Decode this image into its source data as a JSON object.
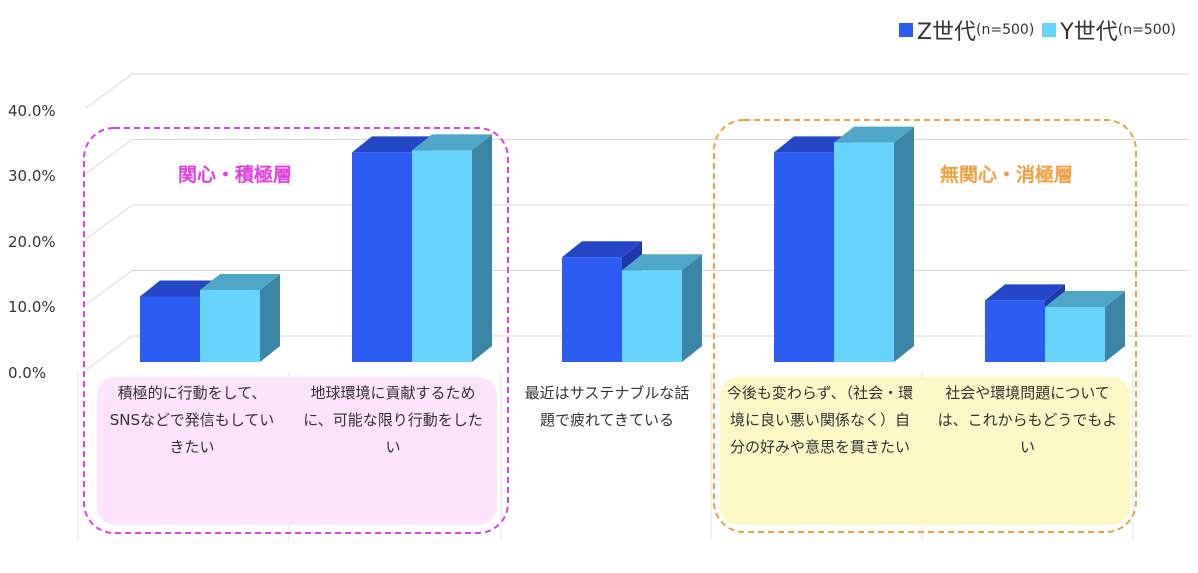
{
  "chart_data": {
    "type": "bar",
    "categories": [
      "積極的に行動をして、SNSなどで発信もしていきたい",
      "地球環境に貢献するために、可能な限り行動をしたい",
      "最近はサステナブルな話題で疲れてきている",
      "今後も変わらず、（社会・環境に良い悪い関係なく）自分の好みや意思を貫きたい",
      "社会や環境問題については、これからもどうでもよい"
    ],
    "series": [
      {
        "name": "Z世代",
        "n_label": "(n=500)",
        "values": [
          10.0,
          32.0,
          16.0,
          32.0,
          9.4
        ]
      },
      {
        "name": "Y世代",
        "n_label": "(n=500)",
        "values": [
          11.0,
          32.3,
          14.0,
          33.5,
          8.4
        ]
      }
    ],
    "ylim": [
      0,
      40
    ],
    "yticks": [
      "0.0%",
      "10.0%",
      "20.0%",
      "30.0%",
      "40.0%"
    ],
    "grid": true,
    "legend_position": "top-right",
    "regions": [
      {
        "label": "関心・積極層",
        "categories": [
          0,
          1
        ],
        "color": "#e040e0",
        "fill": "#fde3fb"
      },
      {
        "label": "無関心・消極層",
        "categories": [
          3,
          4
        ],
        "color": "#f0a040",
        "fill": "#fbf8c6"
      }
    ]
  },
  "colors": {
    "z_front": "#2d5cf2",
    "z_top": "#2447c8",
    "z_side": "#1f3aa6",
    "y_front": "#66d4fc",
    "y_top": "#4fa7c8",
    "y_side": "#3a86a4"
  }
}
